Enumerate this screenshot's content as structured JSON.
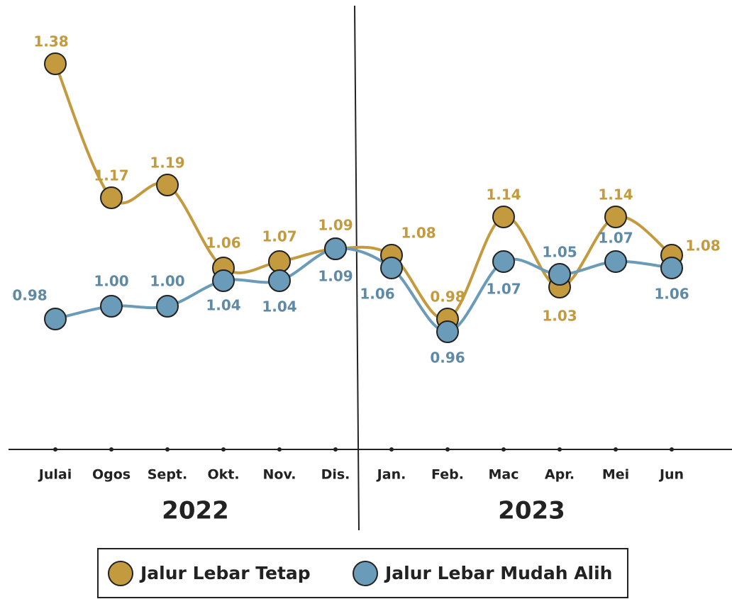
{
  "chart_data": {
    "type": "line",
    "categories": [
      "Julai",
      "Ogos",
      "Sept.",
      "Okt.",
      "Nov.",
      "Dis.",
      "Jan.",
      "Feb.",
      "Mac",
      "Apr.",
      "Mei",
      "Jun"
    ],
    "groups": [
      {
        "label": "2022",
        "count": 6
      },
      {
        "label": "2023",
        "count": 6
      }
    ],
    "series": [
      {
        "name": "Jalur Lebar Tetap",
        "color": "#c49a3f",
        "values": [
          1.38,
          1.17,
          1.19,
          1.06,
          1.07,
          1.09,
          1.08,
          0.98,
          1.14,
          1.03,
          1.14,
          1.08
        ]
      },
      {
        "name": "Jalur Lebar Mudah Alih",
        "color": "#6a9bb8",
        "values": [
          0.98,
          1.0,
          1.0,
          1.04,
          1.04,
          1.09,
          1.06,
          0.96,
          1.07,
          1.05,
          1.07,
          1.06
        ]
      }
    ],
    "value_labels": [
      [
        "1.38",
        "1.17",
        "1.19",
        "1.06",
        "1.07",
        "1.09",
        "1.08",
        "0.98",
        "1.14",
        "1.03",
        "1.14",
        "1.08"
      ],
      [
        "0.98",
        "1.00",
        "1.00",
        "1.04",
        "1.04",
        "1.09",
        "1.06",
        "0.96",
        "1.07",
        "1.05",
        "1.07",
        "1.06"
      ]
    ],
    "ylim": [
      0.9,
      1.4
    ]
  }
}
